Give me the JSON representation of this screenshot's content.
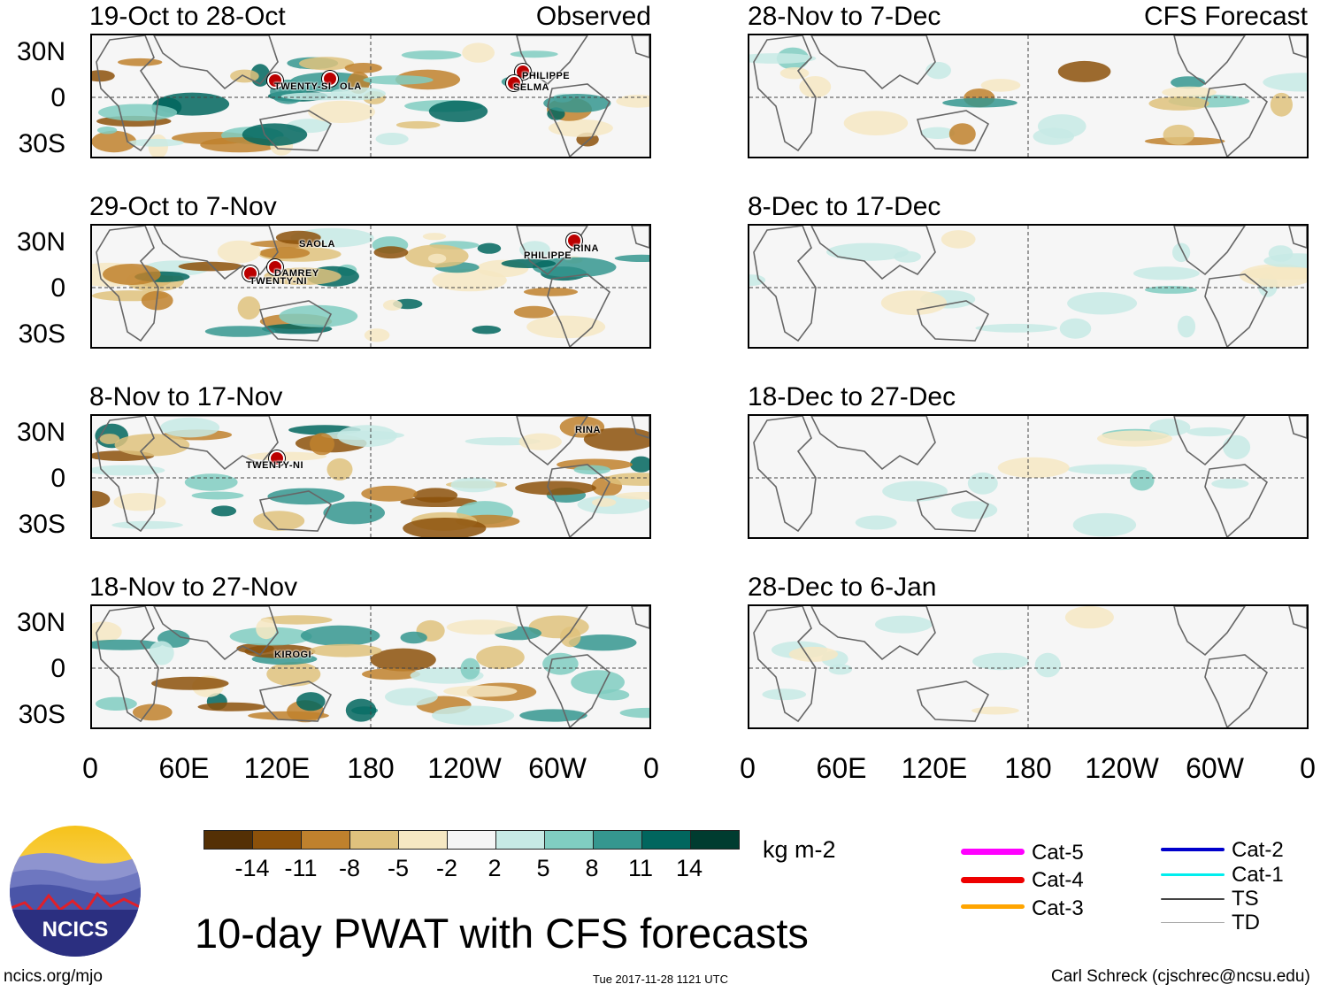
{
  "header": {
    "observed_label": "Observed",
    "forecast_label": "CFS Forecast"
  },
  "lat_labels": [
    "30N",
    "0",
    "30S"
  ],
  "lon_labels": [
    "0",
    "60E",
    "120E",
    "180",
    "120W",
    "60W",
    "0"
  ],
  "observed_panels": [
    {
      "title": "19-Oct to 28-Oct",
      "storms": [
        "TWENTY-SI",
        "OLA",
        "PHILIPPE",
        "SELMA"
      ]
    },
    {
      "title": "29-Oct to 7-Nov",
      "storms": [
        "SAOLA",
        "DAMREY",
        "TWENTY-NI",
        "PHILIPPE",
        "RINA"
      ]
    },
    {
      "title": "8-Nov to 17-Nov",
      "storms": [
        "TWENTY-NI",
        "RINA"
      ]
    },
    {
      "title": "18-Nov to 27-Nov",
      "storms": [
        "KIROGI"
      ]
    }
  ],
  "forecast_panels": [
    {
      "title": "28-Nov to 7-Dec"
    },
    {
      "title": "8-Dec to 17-Dec"
    },
    {
      "title": "18-Dec to 27-Dec"
    },
    {
      "title": "28-Dec to 6-Jan"
    }
  ],
  "colorbar": {
    "unit": "kg m-2",
    "labels": [
      "-14",
      "-11",
      "-8",
      "-5",
      "-2",
      "2",
      "5",
      "8",
      "11",
      "14"
    ],
    "colors": [
      "#543005",
      "#8c510a",
      "#bf812d",
      "#dfc27d",
      "#f6e8c3",
      "#f5f5f5",
      "#c7eae5",
      "#80cdc1",
      "#35978f",
      "#01665e",
      "#003c30"
    ]
  },
  "legend": {
    "items": [
      {
        "label": "Cat-5",
        "color": "#ff00ff"
      },
      {
        "label": "Cat-4",
        "color": "#ee0000"
      },
      {
        "label": "Cat-3",
        "color": "#ffa500"
      },
      {
        "label": "Cat-2",
        "color": "#0000cc"
      },
      {
        "label": "Cat-1",
        "color": "#00eeee"
      },
      {
        "label": "TS",
        "color": "#444444"
      },
      {
        "label": "TD",
        "color": "#aaaaaa"
      }
    ]
  },
  "logo": {
    "text": "NCICS"
  },
  "main_title": "10-day PWAT with CFS forecasts",
  "footer": {
    "url": "ncics.org/mjo",
    "timestamp": "Tue 2017-11-28 1121 UTC",
    "author": "Carl Schreck (cjschrec@ncsu.edu)"
  }
}
